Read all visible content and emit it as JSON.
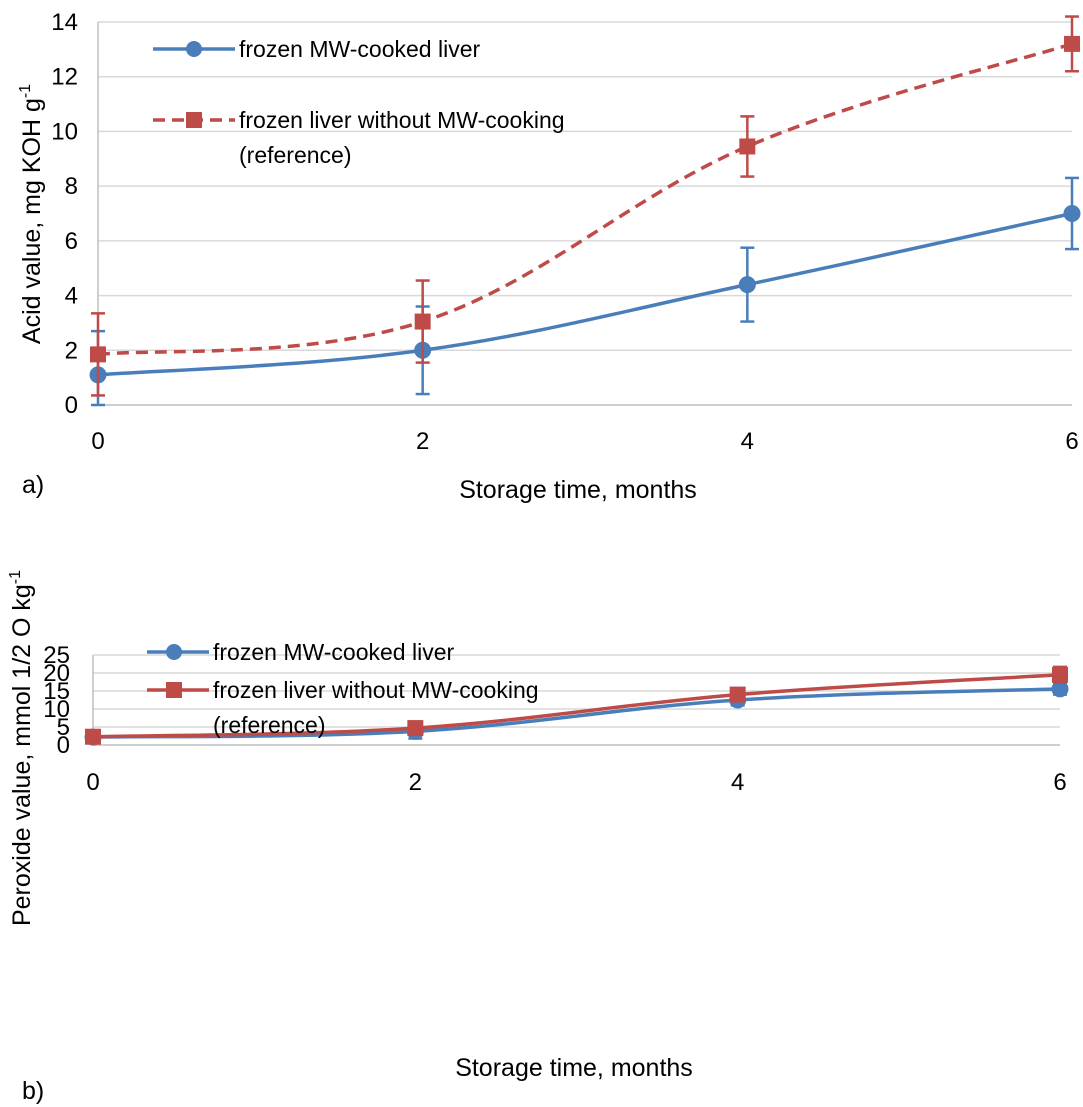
{
  "chart_data": [
    {
      "type": "line",
      "panel_label": "a)",
      "xlabel": "Storage time, months",
      "ylabel": "Acid value, mg KOH g",
      "ylabel_sup": "-1",
      "x": [
        0,
        2,
        4,
        6
      ],
      "xlim": [
        0,
        6
      ],
      "ylim": [
        0,
        14
      ],
      "xticks": [
        "0",
        "2",
        "4",
        "6"
      ],
      "yticks": [
        "0",
        "2",
        "4",
        "6",
        "8",
        "10",
        "12",
        "14"
      ],
      "grid": true,
      "legend_position": "top-left",
      "series": [
        {
          "name": "frozen MW-cooked liver",
          "values": [
            1.1,
            2.0,
            4.4,
            7.0
          ],
          "error": [
            1.6,
            1.6,
            1.35,
            1.3
          ],
          "marker": "circle",
          "line_style": "solid",
          "smooth": true,
          "color": "#4a7ebb"
        },
        {
          "name": "frozen liver without MW-cooking",
          "name_line2": "(reference)",
          "values": [
            1.85,
            3.05,
            9.45,
            13.2
          ],
          "error": [
            1.5,
            1.5,
            1.1,
            1.0
          ],
          "marker": "square",
          "line_style": "dashed",
          "smooth": true,
          "color": "#be4b48"
        }
      ]
    },
    {
      "type": "line",
      "panel_label": "b)",
      "xlabel": "Storage time, months",
      "ylabel": "Peroxide value, mmol 1/2 O kg",
      "ylabel_sup": "-1",
      "x": [
        0,
        2,
        4,
        6
      ],
      "xlim": [
        0,
        6
      ],
      "ylim": [
        0,
        25
      ],
      "xticks": [
        "0",
        "2",
        "4",
        "6"
      ],
      "yticks": [
        "0",
        "5",
        "10",
        "15",
        "20",
        "25"
      ],
      "grid": true,
      "legend_position": "top-left",
      "series": [
        {
          "name": "frozen MW-cooked liver",
          "values": [
            2.2,
            3.8,
            12.5,
            15.6
          ],
          "error": [
            1.6,
            2.0,
            1.5,
            1.6
          ],
          "marker": "circle",
          "line_style": "solid",
          "smooth": true,
          "color": "#4a7ebb"
        },
        {
          "name": "frozen liver without MW-cooking",
          "name_line2": "(reference)",
          "values": [
            2.3,
            4.7,
            14.0,
            19.5
          ],
          "error": [
            1.6,
            1.7,
            1.3,
            2.2
          ],
          "marker": "square",
          "line_style": "solid",
          "smooth": true,
          "color": "#be4b48"
        }
      ]
    }
  ]
}
